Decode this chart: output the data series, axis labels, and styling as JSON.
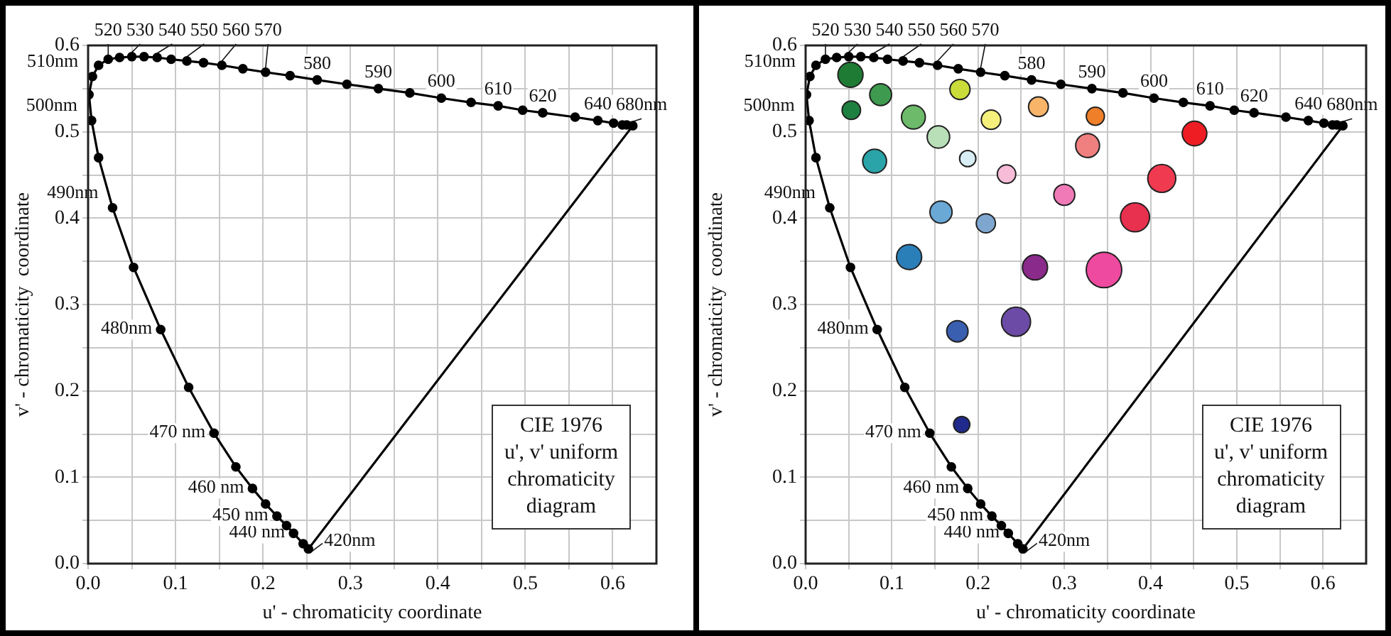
{
  "chart_data": [
    {
      "type": "line",
      "xlabel": "u' - chromaticity coordinate",
      "ylabel": "v' - chromaticity  coordinate",
      "xlim": [
        0,
        0.65
      ],
      "ylim": [
        0,
        0.6
      ],
      "xticks": [
        {
          "value": 0,
          "label": "0.0"
        },
        {
          "value": 0.05,
          "label": null
        },
        0.1,
        {
          "value": 0.15,
          "label": null
        },
        0.2,
        {
          "value": 0.25,
          "label": null
        },
        0.3,
        {
          "value": 0.35,
          "label": null
        },
        0.4,
        {
          "value": 0.45,
          "label": null
        },
        0.5,
        {
          "value": 0.55,
          "label": null
        },
        0.6
      ],
      "yticks": [
        {
          "value": 0,
          "label": "0.0"
        },
        {
          "value": 0.05,
          "label": null
        },
        0.1,
        {
          "value": 0.15,
          "label": null
        },
        0.2,
        {
          "value": 0.25,
          "label": null
        },
        0.3,
        {
          "value": 0.35,
          "label": null
        },
        0.4,
        {
          "value": 0.45,
          "label": null
        },
        0.5,
        {
          "value": 0.55,
          "label": null
        },
        0.6
      ],
      "grid": true,
      "legend": false,
      "series": [
        {
          "type": "line",
          "color": "#000000",
          "marker": "circle",
          "x": [
            0.252,
            0.246,
            0.235,
            0.227,
            0.216,
            0.203,
            0.188,
            0.169,
            0.144,
            0.115,
            0.083,
            0.052,
            0.028,
            0.012,
            0.004,
            0.001,
            0.005,
            0.012,
            0.023,
            0.036,
            0.05,
            0.064,
            0.079,
            0.095,
            0.113,
            0.132,
            0.153,
            0.177,
            0.203,
            0.231,
            0.262,
            0.296,
            0.332,
            0.368,
            0.404,
            0.438,
            0.469,
            0.497,
            0.52,
            0.557,
            0.583,
            0.601,
            0.611,
            0.616,
            0.623
          ],
          "values": [
            0.017,
            0.023,
            0.035,
            0.044,
            0.055,
            0.069,
            0.087,
            0.112,
            0.151,
            0.204,
            0.271,
            0.343,
            0.412,
            0.47,
            0.513,
            0.543,
            0.564,
            0.577,
            0.584,
            0.586,
            0.587,
            0.587,
            0.586,
            0.584,
            0.582,
            0.58,
            0.577,
            0.573,
            0.569,
            0.565,
            0.56,
            0.555,
            0.55,
            0.545,
            0.539,
            0.534,
            0.53,
            0.525,
            0.522,
            0.517,
            0.513,
            0.51,
            0.508,
            0.508,
            0.507
          ]
        },
        {
          "type": "line",
          "color": "#000000",
          "marker": "none",
          "x": [
            0.252,
            0.623
          ],
          "values": [
            0.017,
            0.507
          ]
        }
      ],
      "annotations": [
        {
          "text": "420nm",
          "x": 0.252,
          "y": 0.017
        },
        {
          "text": "440 nm",
          "x": 0.235,
          "y": 0.035
        },
        {
          "text": "450 nm",
          "x": 0.216,
          "y": 0.055
        },
        {
          "text": "460 nm",
          "x": 0.188,
          "y": 0.087
        },
        {
          "text": "470 nm",
          "x": 0.144,
          "y": 0.151
        },
        {
          "text": "480nm",
          "x": 0.083,
          "y": 0.271
        },
        {
          "text": "490nm",
          "x": 0.028,
          "y": 0.412
        },
        {
          "text": "500nm",
          "x": 0.004,
          "y": 0.513
        },
        {
          "text": "510nm",
          "x": 0.005,
          "y": 0.564
        },
        {
          "text": "520",
          "x": 0.023,
          "y": 0.584
        },
        {
          "text": "530",
          "x": 0.05,
          "y": 0.587
        },
        {
          "text": "540",
          "x": 0.079,
          "y": 0.586
        },
        {
          "text": "550",
          "x": 0.113,
          "y": 0.582
        },
        {
          "text": "560",
          "x": 0.153,
          "y": 0.577
        },
        {
          "text": "570",
          "x": 0.203,
          "y": 0.569
        },
        {
          "text": "580",
          "x": 0.262,
          "y": 0.56
        },
        {
          "text": "590",
          "x": 0.332,
          "y": 0.55
        },
        {
          "text": "600",
          "x": 0.404,
          "y": 0.539
        },
        {
          "text": "610",
          "x": 0.469,
          "y": 0.53
        },
        {
          "text": "620",
          "x": 0.52,
          "y": 0.522
        },
        {
          "text": "640",
          "x": 0.583,
          "y": 0.513
        },
        {
          "text": "680nm",
          "x": 0.623,
          "y": 0.507
        },
        "CIE 1976\nu', v' uniform\nchromaticity\ndiagram"
      ]
    },
    {
      "type": "line",
      "xlabel": "u' - chromaticity coordinate",
      "ylabel": "v' - chromaticity  coordinate",
      "xlim": [
        0,
        0.65
      ],
      "ylim": [
        0,
        0.6
      ],
      "xticks": [
        {
          "value": 0,
          "label": "0.0"
        },
        {
          "value": 0.05,
          "label": null
        },
        0.1,
        {
          "value": 0.15,
          "label": null
        },
        0.2,
        {
          "value": 0.25,
          "label": null
        },
        0.3,
        {
          "value": 0.35,
          "label": null
        },
        0.4,
        {
          "value": 0.45,
          "label": null
        },
        0.5,
        {
          "value": 0.55,
          "label": null
        },
        0.6
      ],
      "yticks": [
        {
          "value": 0,
          "label": "0.0"
        },
        {
          "value": 0.05,
          "label": null
        },
        0.1,
        {
          "value": 0.15,
          "label": null
        },
        0.2,
        {
          "value": 0.25,
          "label": null
        },
        0.3,
        {
          "value": 0.35,
          "label": null
        },
        0.4,
        {
          "value": 0.45,
          "label": null
        },
        0.5,
        {
          "value": 0.55,
          "label": null
        },
        0.6
      ],
      "grid": true,
      "legend": false,
      "series": [
        {
          "type": "line",
          "color": "#000000",
          "marker": "circle",
          "x": [
            0.252,
            0.246,
            0.235,
            0.227,
            0.216,
            0.203,
            0.188,
            0.169,
            0.144,
            0.115,
            0.083,
            0.052,
            0.028,
            0.012,
            0.004,
            0.001,
            0.005,
            0.012,
            0.023,
            0.036,
            0.05,
            0.064,
            0.079,
            0.095,
            0.113,
            0.132,
            0.153,
            0.177,
            0.203,
            0.231,
            0.262,
            0.296,
            0.332,
            0.368,
            0.404,
            0.438,
            0.469,
            0.497,
            0.52,
            0.557,
            0.583,
            0.601,
            0.611,
            0.616,
            0.623
          ],
          "values": [
            0.017,
            0.023,
            0.035,
            0.044,
            0.055,
            0.069,
            0.087,
            0.112,
            0.151,
            0.204,
            0.271,
            0.343,
            0.412,
            0.47,
            0.513,
            0.543,
            0.564,
            0.577,
            0.584,
            0.586,
            0.587,
            0.587,
            0.586,
            0.584,
            0.582,
            0.58,
            0.577,
            0.573,
            0.569,
            0.565,
            0.56,
            0.555,
            0.55,
            0.545,
            0.539,
            0.534,
            0.53,
            0.525,
            0.522,
            0.517,
            0.513,
            0.51,
            0.508,
            0.508,
            0.507
          ]
        },
        {
          "type": "line",
          "color": "#000000",
          "marker": "none",
          "x": [
            0.252,
            0.623
          ],
          "values": [
            0.017,
            0.507
          ]
        },
        {
          "type": "bubble",
          "x": [
            0.052,
            0.087,
            0.053,
            0.125,
            0.154,
            0.179,
            0.215,
            0.27,
            0.336,
            0.327,
            0.451,
            0.08,
            0.188,
            0.233,
            0.3,
            0.413,
            0.382,
            0.157,
            0.209,
            0.12,
            0.266,
            0.346,
            0.244,
            0.176,
            0.181
          ],
          "values": [
            0.566,
            0.543,
            0.525,
            0.517,
            0.494,
            0.549,
            0.514,
            0.529,
            0.518,
            0.484,
            0.498,
            0.466,
            0.469,
            0.451,
            0.427,
            0.446,
            0.401,
            0.407,
            0.394,
            0.355,
            0.343,
            0.34,
            0.28,
            0.269,
            0.161
          ],
          "sizes": [
            0.5,
            0.38,
            0.27,
            0.45,
            0.4,
            0.32,
            0.3,
            0.31,
            0.26,
            0.45,
            0.48,
            0.45,
            0.21,
            0.27,
            0.35,
            0.62,
            0.67,
            0.39,
            0.29,
            0.5,
            0.5,
            1,
            0.67,
            0.36,
            0.21
          ],
          "colors": [
            "#1e7b34",
            "#3d9a4f",
            "#1e8040",
            "#6dba6a",
            "#b9dfb9",
            "#c9dc3a",
            "#f5f07c",
            "#f8b56a",
            "#f07f2a",
            "#f08080",
            "#ee1d23",
            "#2aa4a8",
            "#d8eef4",
            "#f6bcd8",
            "#f07ab8",
            "#ef3a50",
            "#e8304f",
            "#6aa8d5",
            "#7ea6cf",
            "#2b7fb8",
            "#8a2a8a",
            "#ee4aa0",
            "#6b4ba6",
            "#3a5fb0",
            "#1f2a8c"
          ]
        }
      ],
      "annotations": [
        {
          "text": "420nm",
          "x": 0.252,
          "y": 0.017
        },
        {
          "text": "440 nm",
          "x": 0.235,
          "y": 0.035
        },
        {
          "text": "450 nm",
          "x": 0.216,
          "y": 0.055
        },
        {
          "text": "460 nm",
          "x": 0.188,
          "y": 0.087
        },
        {
          "text": "470 nm",
          "x": 0.144,
          "y": 0.151
        },
        {
          "text": "480nm",
          "x": 0.083,
          "y": 0.271
        },
        {
          "text": "490nm",
          "x": 0.028,
          "y": 0.412
        },
        {
          "text": "500nm",
          "x": 0.004,
          "y": 0.513
        },
        {
          "text": "510nm",
          "x": 0.005,
          "y": 0.564
        },
        {
          "text": "520",
          "x": 0.023,
          "y": 0.584
        },
        {
          "text": "530",
          "x": 0.05,
          "y": 0.587
        },
        {
          "text": "540",
          "x": 0.079,
          "y": 0.586
        },
        {
          "text": "550",
          "x": 0.113,
          "y": 0.582
        },
        {
          "text": "560",
          "x": 0.153,
          "y": 0.577
        },
        {
          "text": "570",
          "x": 0.203,
          "y": 0.569
        },
        {
          "text": "580",
          "x": 0.262,
          "y": 0.56
        },
        {
          "text": "590",
          "x": 0.332,
          "y": 0.55
        },
        {
          "text": "600",
          "x": 0.404,
          "y": 0.539
        },
        {
          "text": "610",
          "x": 0.469,
          "y": 0.53
        },
        {
          "text": "620",
          "x": 0.52,
          "y": 0.522
        },
        {
          "text": "640",
          "x": 0.583,
          "y": 0.513
        },
        {
          "text": "680nm",
          "x": 0.623,
          "y": 0.507
        },
        "CIE 1976\nu', v' uniform\nchromaticity\ndiagram"
      ]
    }
  ]
}
